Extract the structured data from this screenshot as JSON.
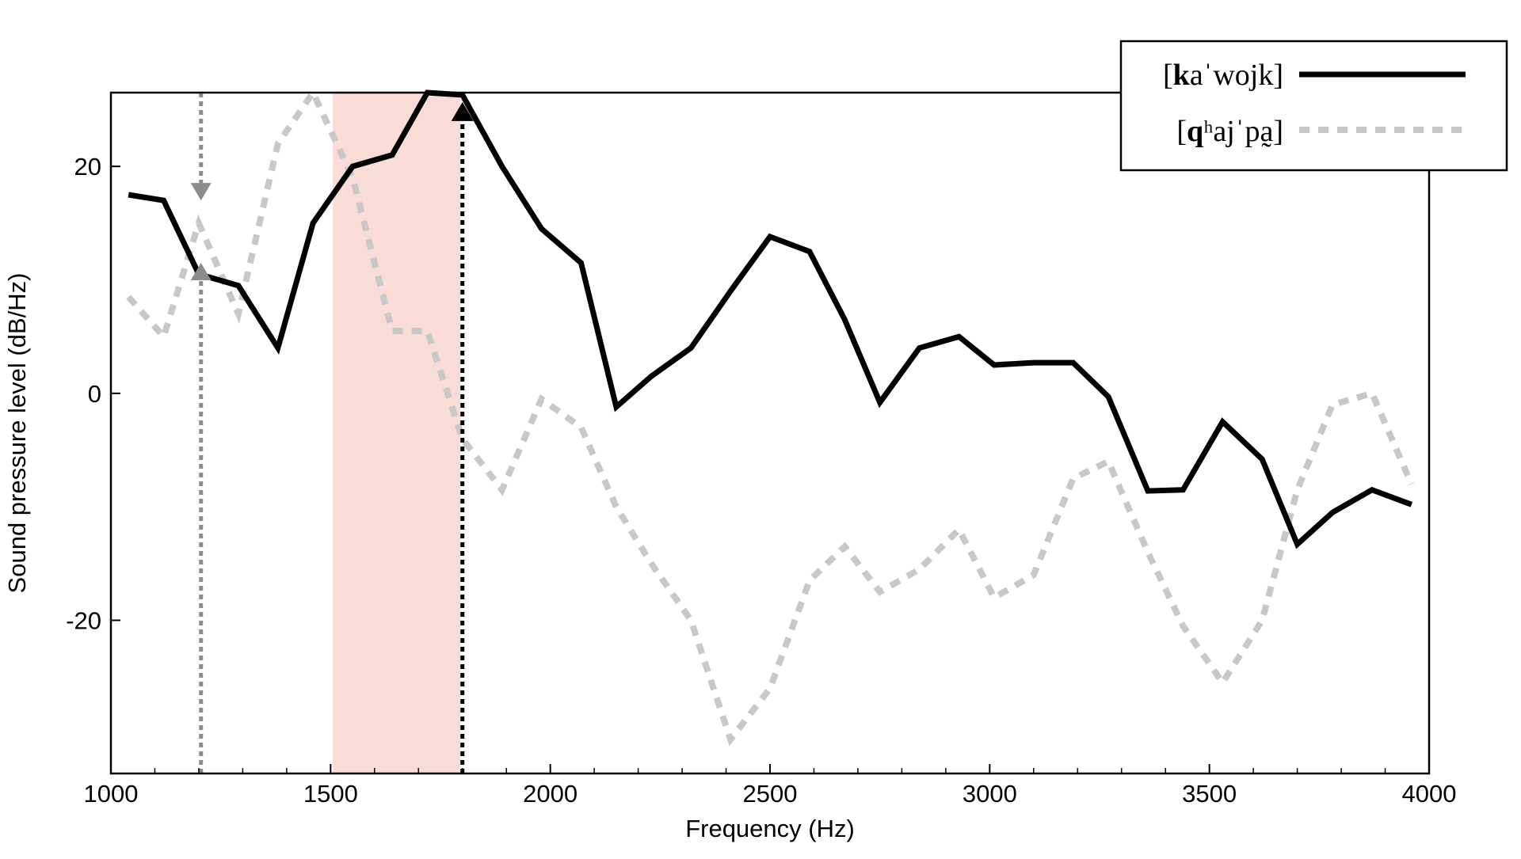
{
  "chart_data": {
    "type": "line",
    "xlabel": "Frequency (Hz)",
    "ylabel": "Sound pressure level (dB/Hz)",
    "xlim": [
      1000,
      4000
    ],
    "ylim": [
      -33.5,
      26.5
    ],
    "x_ticks": [
      "1000",
      "1500",
      "2000",
      "2500",
      "3000",
      "3500",
      "4000"
    ],
    "y_ticks": [
      "-20",
      "0",
      "20"
    ],
    "grid": false,
    "legend_position": "top-right",
    "colors": {
      "series_1": "#000000",
      "series_2": "#c8c8c8",
      "band": "#f9dcd6",
      "marker_1": "#000000",
      "marker_2": "#8c8c8c"
    },
    "series": [
      {
        "legend_label": {
          "open": "[",
          "bold": "k",
          "rest": "aˈwojk]"
        },
        "style": "solid",
        "x": [
          1040,
          1120,
          1200,
          1290,
          1380,
          1460,
          1550,
          1640,
          1720,
          1800,
          1890,
          1980,
          2070,
          2150,
          2230,
          2320,
          2410,
          2500,
          2590,
          2670,
          2750,
          2840,
          2930,
          3010,
          3100,
          3190,
          3270,
          3360,
          3440,
          3530,
          3620,
          3700,
          3780,
          3870,
          3960
        ],
        "y": [
          17.5,
          17.0,
          10.5,
          9.5,
          4.0,
          15.0,
          20.0,
          21.0,
          26.5,
          26.3,
          20.0,
          14.5,
          11.5,
          -1.2,
          1.5,
          4.0,
          9.0,
          13.8,
          12.5,
          6.5,
          -0.8,
          4.0,
          5.0,
          2.5,
          2.7,
          2.7,
          -0.3,
          -8.6,
          -8.5,
          -2.5,
          -5.8,
          -13.3,
          -10.5,
          -8.5,
          -9.8
        ]
      },
      {
        "legend_label": {
          "open": "[",
          "bold": "q",
          "rest": "ʰajˈpa̰]"
        },
        "style": "dashed",
        "x": [
          1040,
          1120,
          1200,
          1290,
          1380,
          1460,
          1550,
          1640,
          1720,
          1800,
          1890,
          1980,
          2070,
          2150,
          2230,
          2320,
          2410,
          2500,
          2590,
          2670,
          2750,
          2840,
          2930,
          3010,
          3100,
          3190,
          3270,
          3360,
          3440,
          3530,
          3620,
          3700,
          3780,
          3870,
          3960
        ],
        "y": [
          8.5,
          5.0,
          15.0,
          7.0,
          22.0,
          26.5,
          19.0,
          5.5,
          5.5,
          -4.0,
          -8.5,
          -0.5,
          -3.0,
          -10.0,
          -15.0,
          -20.0,
          -30.5,
          -26.0,
          -16.5,
          -13.5,
          -17.5,
          -15.5,
          -12.0,
          -18.0,
          -16.0,
          -7.5,
          -6.0,
          -14.0,
          -20.5,
          -25.5,
          -20.0,
          -8.5,
          -1.0,
          0.0,
          -8.0
        ]
      }
    ],
    "shaded_band": {
      "x_start": 1505,
      "x_end": 1795
    },
    "markers": [
      {
        "series": 1,
        "x": 1800,
        "y_peak": 26.3,
        "direction": "up"
      },
      {
        "series": 2,
        "x": 1205,
        "direction": "both",
        "y_down_tip": 17.0,
        "y_up_tip": 11.5
      }
    ]
  }
}
